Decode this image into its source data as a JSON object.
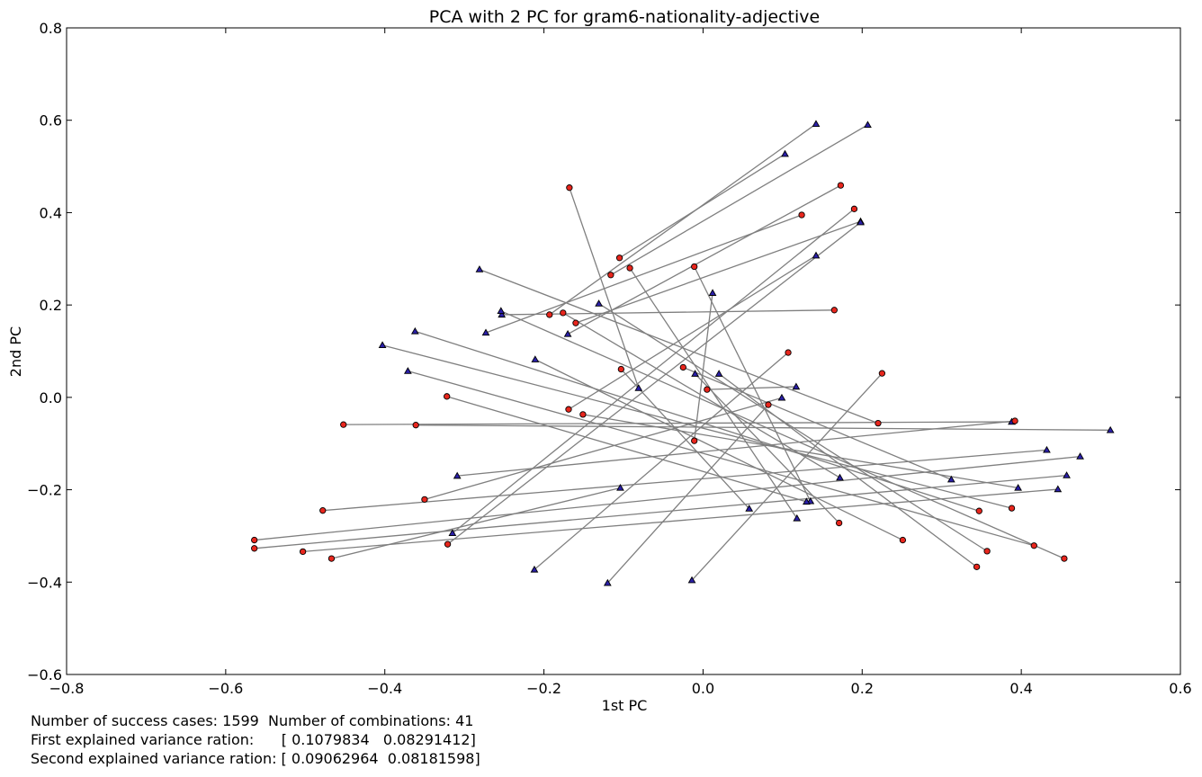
{
  "chart_data": {
    "type": "scatter",
    "title": "PCA with 2 PC for gram6-nationality-adjective",
    "xlabel": "1st PC",
    "ylabel": "2nd PC",
    "xlim": [
      -0.8,
      0.6
    ],
    "ylim": [
      -0.6,
      0.8
    ],
    "xticks": [
      -0.8,
      -0.6,
      -0.4,
      -0.2,
      0.0,
      0.2,
      0.4,
      0.6
    ],
    "yticks": [
      -0.6,
      -0.4,
      -0.2,
      0.0,
      0.2,
      0.4,
      0.6,
      0.8
    ],
    "xtick_labels": [
      "−0.8",
      "−0.6",
      "−0.4",
      "−0.2",
      "0.0",
      "0.2",
      "0.4",
      "0.6"
    ],
    "ytick_labels": [
      "−0.6",
      "−0.4",
      "−0.2",
      "0.0",
      "0.2",
      "0.4",
      "0.6",
      "0.8"
    ],
    "grid": false,
    "colors": {
      "circle_fill": "#e8261d",
      "triangle_fill": "#2a1fa8",
      "line": "#7f7f7f",
      "marker_edge": "#000000"
    },
    "pairs": [
      {
        "circle": [
          -0.168,
          0.454
        ],
        "triangle": [
          -0.081,
          0.02
        ]
      },
      {
        "circle": [
          0.173,
          0.459
        ],
        "triangle": [
          -0.17,
          0.137
        ]
      },
      {
        "circle": [
          0.19,
          0.408
        ],
        "triangle": [
          -0.315,
          -0.294
        ]
      },
      {
        "circle": [
          0.124,
          0.395
        ],
        "triangle": [
          -0.273,
          0.14
        ]
      },
      {
        "circle": [
          -0.105,
          0.302
        ],
        "triangle": [
          0.103,
          0.527
        ]
      },
      {
        "circle": [
          -0.092,
          0.28
        ],
        "triangle": [
          0.118,
          -0.262
        ]
      },
      {
        "circle": [
          -0.116,
          0.265
        ],
        "triangle": [
          0.207,
          0.59
        ]
      },
      {
        "circle": [
          -0.011,
          0.283
        ],
        "triangle": [
          0.135,
          -0.225
        ]
      },
      {
        "circle": [
          -0.193,
          0.179
        ],
        "triangle": [
          0.142,
          0.592
        ]
      },
      {
        "circle": [
          -0.16,
          0.161
        ],
        "triangle": [
          0.198,
          0.381
        ]
      },
      {
        "circle": [
          -0.176,
          0.183
        ],
        "triangle": [
          0.172,
          -0.174
        ]
      },
      {
        "circle": [
          -0.103,
          0.061
        ],
        "triangle": [
          0.058,
          -0.241
        ]
      },
      {
        "circle": [
          -0.025,
          0.065
        ],
        "triangle": [
          0.312,
          -0.178
        ]
      },
      {
        "circle": [
          0.005,
          0.017
        ],
        "triangle": [
          0.117,
          0.023
        ]
      },
      {
        "circle": [
          -0.011,
          -0.094
        ],
        "triangle": [
          0.012,
          0.226
        ]
      },
      {
        "circle": [
          0.082,
          -0.016
        ],
        "triangle": [
          -0.12,
          -0.402
        ]
      },
      {
        "circle": [
          0.107,
          0.097
        ],
        "triangle": [
          -0.212,
          -0.373
        ]
      },
      {
        "circle": [
          0.225,
          0.052
        ],
        "triangle": [
          -0.014,
          -0.396
        ]
      },
      {
        "circle": [
          0.22,
          -0.056
        ],
        "triangle": [
          -0.281,
          0.277
        ]
      },
      {
        "circle": [
          0.165,
          0.189
        ],
        "triangle": [
          -0.253,
          0.179
        ]
      },
      {
        "circle": [
          -0.169,
          -0.026
        ],
        "triangle": [
          0.142,
          0.307
        ]
      },
      {
        "circle": [
          -0.151,
          -0.037
        ],
        "triangle": [
          0.396,
          -0.196
        ]
      },
      {
        "circle": [
          -0.322,
          0.002
        ],
        "triangle": [
          0.13,
          -0.226
        ]
      },
      {
        "circle": [
          -0.452,
          -0.059
        ],
        "triangle": [
          0.388,
          -0.053
        ]
      },
      {
        "circle": [
          -0.478,
          -0.245
        ],
        "triangle": [
          0.432,
          -0.114
        ]
      },
      {
        "circle": [
          0.392,
          -0.051
        ],
        "triangle": [
          -0.309,
          -0.17
        ]
      },
      {
        "circle": [
          -0.564,
          -0.309
        ],
        "triangle": [
          0.474,
          -0.128
        ]
      },
      {
        "circle": [
          -0.564,
          -0.327
        ],
        "triangle": [
          0.457,
          -0.169
        ]
      },
      {
        "circle": [
          -0.503,
          -0.334
        ],
        "triangle": [
          0.446,
          -0.199
        ]
      },
      {
        "circle": [
          -0.467,
          -0.349
        ],
        "triangle": [
          -0.104,
          -0.196
        ]
      },
      {
        "circle": [
          0.171,
          -0.272
        ],
        "triangle": [
          -0.01,
          0.051
        ]
      },
      {
        "circle": [
          0.251,
          -0.309
        ],
        "triangle": [
          -0.211,
          0.082
        ]
      },
      {
        "circle": [
          0.347,
          -0.246
        ],
        "triangle": [
          -0.362,
          0.143
        ]
      },
      {
        "circle": [
          0.388,
          -0.24
        ],
        "triangle": [
          -0.403,
          0.113
        ]
      },
      {
        "circle": [
          0.344,
          -0.367
        ],
        "triangle": [
          0.02,
          0.051
        ]
      },
      {
        "circle": [
          0.357,
          -0.333
        ],
        "triangle": [
          -0.131,
          0.203
        ]
      },
      {
        "circle": [
          0.416,
          -0.321
        ],
        "triangle": [
          -0.371,
          0.057
        ]
      },
      {
        "circle": [
          0.454,
          -0.349
        ],
        "triangle": [
          -0.254,
          0.187
        ]
      },
      {
        "circle": [
          -0.321,
          -0.318
        ],
        "triangle": [
          0.198,
          0.379
        ]
      },
      {
        "circle": [
          -0.35,
          -0.221
        ],
        "triangle": [
          0.099,
          -0.001
        ]
      },
      {
        "circle": [
          -0.361,
          -0.06
        ],
        "triangle": [
          0.512,
          -0.071
        ]
      }
    ]
  },
  "footer": {
    "line1": "Number of success cases: 1599  Number of combinations: 41",
    "line2": "First explained variance ration:      [ 0.1079834   0.08291412]",
    "line3": "Second explained variance ration: [ 0.09062964  0.08181598]"
  }
}
